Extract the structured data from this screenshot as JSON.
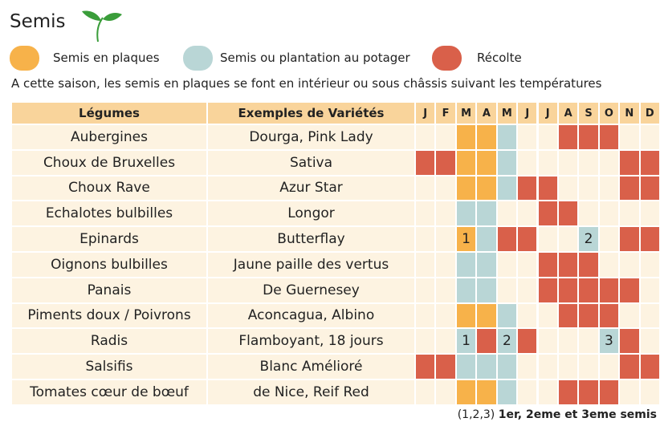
{
  "title": "Semis",
  "legend": [
    {
      "key": "O",
      "label": "Semis en plaques",
      "color": "#f7b24a"
    },
    {
      "key": "B",
      "label": "Semis ou plantation au potager",
      "color": "#b9d6d6"
    },
    {
      "key": "R",
      "label": "Récolte",
      "color": "#d9604a"
    }
  ],
  "subtitle": "A cette saison, les semis en plaques se font en intérieur ou sous châssis suivant les températures",
  "table": {
    "headers": [
      "Légumes",
      "Exemples de Variétés"
    ],
    "months": [
      "J",
      "F",
      "M",
      "A",
      "M",
      "J",
      "J",
      "A",
      "S",
      "O",
      "N",
      "D"
    ],
    "rows": [
      {
        "legume": "Aubergines",
        "variety": "Dourga, Pink Lady",
        "cells": [
          null,
          null,
          "O",
          "O",
          "B",
          null,
          null,
          "R",
          "R",
          "R",
          null,
          null
        ]
      },
      {
        "legume": "Choux de Bruxelles",
        "variety": "Sativa",
        "cells": [
          "R",
          "R",
          "O",
          "O",
          "B",
          null,
          null,
          null,
          null,
          null,
          "R",
          "R"
        ]
      },
      {
        "legume": "Choux Rave",
        "variety": "Azur Star",
        "cells": [
          null,
          null,
          "O",
          "O",
          "B",
          "R",
          "R",
          null,
          null,
          null,
          "R",
          "R"
        ]
      },
      {
        "legume": "Echalotes bulbilles",
        "variety": "Longor",
        "cells": [
          null,
          null,
          "B",
          "B",
          null,
          null,
          "R",
          "R",
          null,
          null,
          null,
          null
        ]
      },
      {
        "legume": "Epinards",
        "variety": "Butterflay",
        "cells": [
          null,
          null,
          {
            "kind": "O",
            "label": "1"
          },
          "B",
          "R",
          "R",
          null,
          null,
          {
            "kind": "B",
            "label": "2"
          },
          null,
          "R",
          "R"
        ]
      },
      {
        "legume": "Oignons bulbilles",
        "variety": "Jaune paille des vertus",
        "cells": [
          null,
          null,
          "B",
          "B",
          null,
          null,
          "R",
          "R",
          "R",
          null,
          null,
          null
        ]
      },
      {
        "legume": "Panais",
        "variety": "De Guernesey",
        "cells": [
          null,
          null,
          "B",
          "B",
          null,
          null,
          "R",
          "R",
          "R",
          "R",
          "R",
          null
        ]
      },
      {
        "legume": "Piments doux / Poivrons",
        "variety": "Aconcagua, Albino",
        "cells": [
          null,
          null,
          "O",
          "O",
          "B",
          null,
          null,
          "R",
          "R",
          "R",
          null,
          null
        ]
      },
      {
        "legume": "Radis",
        "variety": "Flamboyant, 18 jours",
        "cells": [
          null,
          null,
          {
            "kind": "B",
            "label": "1"
          },
          "R",
          {
            "kind": "B",
            "label": "2"
          },
          "R",
          null,
          null,
          null,
          {
            "kind": "B",
            "label": "3"
          },
          "R",
          null
        ]
      },
      {
        "legume": "Salsifis",
        "variety": "Blanc Amélioré",
        "cells": [
          "R",
          "R",
          "B",
          "B",
          "B",
          null,
          null,
          null,
          null,
          null,
          "R",
          "R"
        ]
      },
      {
        "legume": "Tomates cœur de bœuf",
        "variety": "de Nice, Reif Red",
        "cells": [
          null,
          null,
          "O",
          "O",
          "B",
          null,
          null,
          "R",
          "R",
          "R",
          null,
          null
        ]
      }
    ]
  },
  "footnote": {
    "key": "(1,2,3)",
    "text": "1er, 2eme et 3eme semis"
  }
}
